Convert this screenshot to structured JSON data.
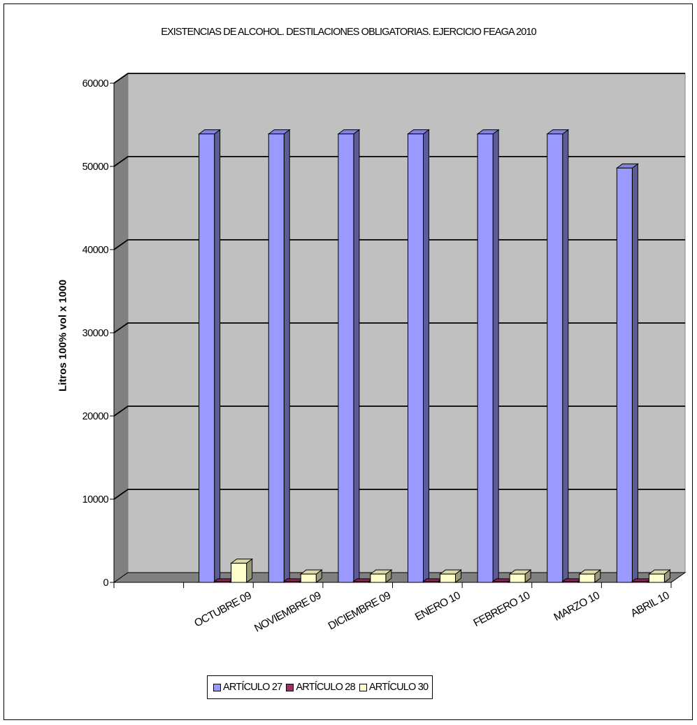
{
  "chart_data": {
    "type": "bar",
    "title": "EXISTENCIAS DE ALCOHOL. DESTILACIONES OBLIGATORIAS. EJERCICIO FEAGA 2010",
    "ylabel": "Litros 100% vol x 1000",
    "xlabel": "",
    "ylim": [
      0,
      60000
    ],
    "yticks": [
      "0",
      "10000",
      "20000",
      "30000",
      "40000",
      "50000",
      "60000"
    ],
    "categories": [
      "OCTUBRE 09",
      "NOVIEMBRE 09",
      "DICIEMBRE 09",
      "ENERO 10",
      "FEBRERO 10",
      "MARZO 10",
      "ABRIL 10"
    ],
    "series": [
      {
        "name": "ARTÍCULO 27",
        "color": "#9999ff",
        "values": [
          53900,
          53900,
          53900,
          53900,
          53900,
          53900,
          49800
        ]
      },
      {
        "name": "ARTÍCULO 28",
        "color": "#993366",
        "values": [
          0,
          0,
          0,
          0,
          0,
          0,
          0
        ]
      },
      {
        "name": "ARTÍCULO 30",
        "color": "#ffffcc",
        "values": [
          2300,
          1000,
          1000,
          1000,
          1000,
          1000,
          1000
        ]
      }
    ],
    "grid": true,
    "legend_position": "bottom",
    "style": "3d-column",
    "colors": {
      "wall": "#c0c0c0",
      "floor": "#808080",
      "grid": "#000000"
    }
  }
}
